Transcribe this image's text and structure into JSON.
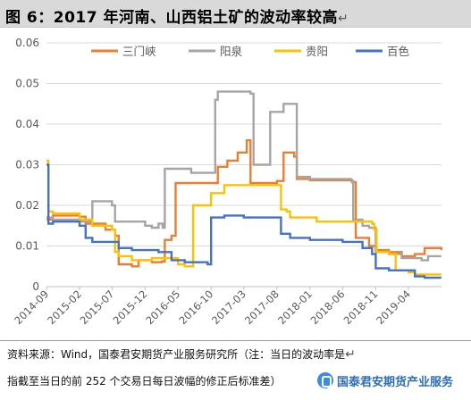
{
  "header": {
    "title": "图 6：2017 年河南、山西铝土矿的波动率较高"
  },
  "footer": {
    "note_line1": "资料来源：Wind，国泰君安期货产业服务研究所（注：当日的波动率是",
    "note_line2": "指截至当日的前 252 个交易日每日波幅的修正后标准差）",
    "watermark_text": "国泰君安期货产业服务",
    "watermark_icon": "wechat-logo-icon"
  },
  "colors": {
    "sanmenxia": "#ed7d31",
    "yangquan": "#a5a5a5",
    "guiyang": "#ffc000",
    "baise": "#4472c4"
  },
  "chart_data": {
    "type": "line",
    "title": "",
    "xlabel": "",
    "ylabel": "",
    "x_ticks": [
      "2014-09",
      "2015-02",
      "2015-07",
      "2015-12",
      "2016-05",
      "2016-10",
      "2017-03",
      "2017-08",
      "2018-01",
      "2018-06",
      "2018-11",
      "2019-04"
    ],
    "y_ticks": [
      "0",
      "0.01",
      "0.02",
      "0.03",
      "0.04",
      "0.05",
      "0.06"
    ],
    "ylim": [
      0,
      0.06
    ],
    "xlim": [
      "2014-09",
      "2019-09"
    ],
    "legend_position": "top",
    "series": [
      {
        "name": "三门峡",
        "color": "#ed7d31",
        "points": [
          [
            "2014-09-01",
            0.0165
          ],
          [
            "2014-09-20",
            0.0165
          ],
          [
            "2014-10-01",
            0.0175
          ],
          [
            "2015-02-01",
            0.0172
          ],
          [
            "2015-03-01",
            0.0155
          ],
          [
            "2015-06-01",
            0.014
          ],
          [
            "2015-07-15",
            0.0125
          ],
          [
            "2015-08-01",
            0.0055
          ],
          [
            "2015-10-01",
            0.005
          ],
          [
            "2015-11-01",
            0.0065
          ],
          [
            "2016-01-01",
            0.006
          ],
          [
            "2016-02-15",
            0.0062
          ],
          [
            "2016-03-01",
            0.0115
          ],
          [
            "2016-04-01",
            0.0125
          ],
          [
            "2016-04-20",
            0.0255
          ],
          [
            "2016-10-01",
            0.0255
          ],
          [
            "2016-11-01",
            0.0295
          ],
          [
            "2016-12-15",
            0.031
          ],
          [
            "2017-02-01",
            0.033
          ],
          [
            "2017-03-15",
            0.036
          ],
          [
            "2017-04-01",
            0.0255
          ],
          [
            "2017-08-01",
            0.026
          ],
          [
            "2017-09-01",
            0.033
          ],
          [
            "2017-10-20",
            0.032
          ],
          [
            "2017-11-01",
            0.0265
          ],
          [
            "2018-01-01",
            0.0262
          ],
          [
            "2018-07-15",
            0.0257
          ],
          [
            "2018-08-01",
            0.012
          ],
          [
            "2018-10-01",
            0.01
          ],
          [
            "2018-11-01",
            0.009
          ],
          [
            "2019-01-01",
            0.0085
          ],
          [
            "2019-03-01",
            0.0075
          ],
          [
            "2019-05-01",
            0.008
          ],
          [
            "2019-06-15",
            0.0095
          ],
          [
            "2019-08-31",
            0.009
          ]
        ]
      },
      {
        "name": "阳泉",
        "color": "#a5a5a5",
        "points": [
          [
            "2014-09-01",
            0.017
          ],
          [
            "2014-10-01",
            0.0165
          ],
          [
            "2015-02-01",
            0.016
          ],
          [
            "2015-04-01",
            0.021
          ],
          [
            "2015-07-01",
            0.02
          ],
          [
            "2015-07-15",
            0.016
          ],
          [
            "2015-12-01",
            0.015
          ],
          [
            "2016-01-01",
            0.0145
          ],
          [
            "2016-02-01",
            0.0155
          ],
          [
            "2016-02-20",
            0.0145
          ],
          [
            "2016-03-01",
            0.029
          ],
          [
            "2016-07-01",
            0.028
          ],
          [
            "2016-10-01",
            0.028
          ],
          [
            "2016-10-20",
            0.046
          ],
          [
            "2016-11-01",
            0.048
          ],
          [
            "2017-04-01",
            0.0475
          ],
          [
            "2017-04-15",
            0.03
          ],
          [
            "2017-06-15",
            0.03
          ],
          [
            "2017-07-01",
            0.043
          ],
          [
            "2017-09-01",
            0.045
          ],
          [
            "2017-10-20",
            0.045
          ],
          [
            "2017-11-01",
            0.027
          ],
          [
            "2018-01-01",
            0.0265
          ],
          [
            "2018-07-10",
            0.026
          ],
          [
            "2018-07-20",
            0.0165
          ],
          [
            "2018-09-01",
            0.015
          ],
          [
            "2018-10-01",
            0.0145
          ],
          [
            "2018-11-01",
            0.0085
          ],
          [
            "2019-01-01",
            0.008
          ],
          [
            "2019-03-01",
            0.007
          ],
          [
            "2019-06-01",
            0.0065
          ],
          [
            "2019-07-01",
            0.0075
          ],
          [
            "2019-08-31",
            0.0075
          ]
        ]
      },
      {
        "name": "贵阳",
        "color": "#ffc000",
        "points": [
          [
            "2014-09-01",
            0.031
          ],
          [
            "2014-09-10",
            0.0185
          ],
          [
            "2014-10-01",
            0.018
          ],
          [
            "2015-02-01",
            0.0165
          ],
          [
            "2015-04-01",
            0.015
          ],
          [
            "2015-07-01",
            0.014
          ],
          [
            "2015-07-15",
            0.0085
          ],
          [
            "2015-08-01",
            0.0075
          ],
          [
            "2015-10-01",
            0.0065
          ],
          [
            "2015-12-01",
            0.0065
          ],
          [
            "2016-01-01",
            0.007
          ],
          [
            "2016-04-01",
            0.007
          ],
          [
            "2016-05-01",
            0.0055
          ],
          [
            "2016-06-01",
            0.005
          ],
          [
            "2016-07-01",
            0.005
          ],
          [
            "2016-07-10",
            0.02
          ],
          [
            "2016-09-01",
            0.02
          ],
          [
            "2016-10-01",
            0.023
          ],
          [
            "2016-12-01",
            0.025
          ],
          [
            "2017-08-10",
            0.025
          ],
          [
            "2017-08-20",
            0.019
          ],
          [
            "2017-09-15",
            0.0185
          ],
          [
            "2017-10-01",
            0.017
          ],
          [
            "2018-02-01",
            0.016
          ],
          [
            "2018-03-01",
            0.016
          ],
          [
            "2018-10-15",
            0.0155
          ],
          [
            "2018-10-25",
            0.014
          ],
          [
            "2018-11-05",
            0.0085
          ],
          [
            "2019-01-01",
            0.008
          ],
          [
            "2019-02-01",
            0.004
          ],
          [
            "2019-04-01",
            0.0035
          ],
          [
            "2019-05-01",
            0.003
          ],
          [
            "2019-08-31",
            0.003
          ]
        ]
      },
      {
        "name": "百色",
        "color": "#4472c4",
        "points": [
          [
            "2014-09-01",
            0.03
          ],
          [
            "2014-09-10",
            0.0155
          ],
          [
            "2014-10-01",
            0.016
          ],
          [
            "2015-02-01",
            0.015
          ],
          [
            "2015-03-01",
            0.012
          ],
          [
            "2015-04-01",
            0.011
          ],
          [
            "2015-07-01",
            0.011
          ],
          [
            "2015-08-01",
            0.0095
          ],
          [
            "2015-10-01",
            0.009
          ],
          [
            "2015-12-15",
            0.009
          ],
          [
            "2016-02-01",
            0.0085
          ],
          [
            "2016-03-15",
            0.0085
          ],
          [
            "2016-04-01",
            0.0065
          ],
          [
            "2016-06-01",
            0.006
          ],
          [
            "2016-08-01",
            0.006
          ],
          [
            "2016-09-15",
            0.0055
          ],
          [
            "2016-10-01",
            0.017
          ],
          [
            "2016-12-01",
            0.0175
          ],
          [
            "2017-03-01",
            0.017
          ],
          [
            "2017-06-01",
            0.017
          ],
          [
            "2017-08-01",
            0.017
          ],
          [
            "2017-08-20",
            0.013
          ],
          [
            "2017-10-01",
            0.012
          ],
          [
            "2018-01-01",
            0.0115
          ],
          [
            "2018-06-01",
            0.011
          ],
          [
            "2018-09-01",
            0.0095
          ],
          [
            "2018-10-15",
            0.008
          ],
          [
            "2018-11-01",
            0.0045
          ],
          [
            "2019-01-01",
            0.004
          ],
          [
            "2019-03-01",
            0.004
          ],
          [
            "2019-05-01",
            0.0025
          ],
          [
            "2019-06-15",
            0.0022
          ],
          [
            "2019-08-31",
            0.0022
          ]
        ]
      }
    ]
  }
}
